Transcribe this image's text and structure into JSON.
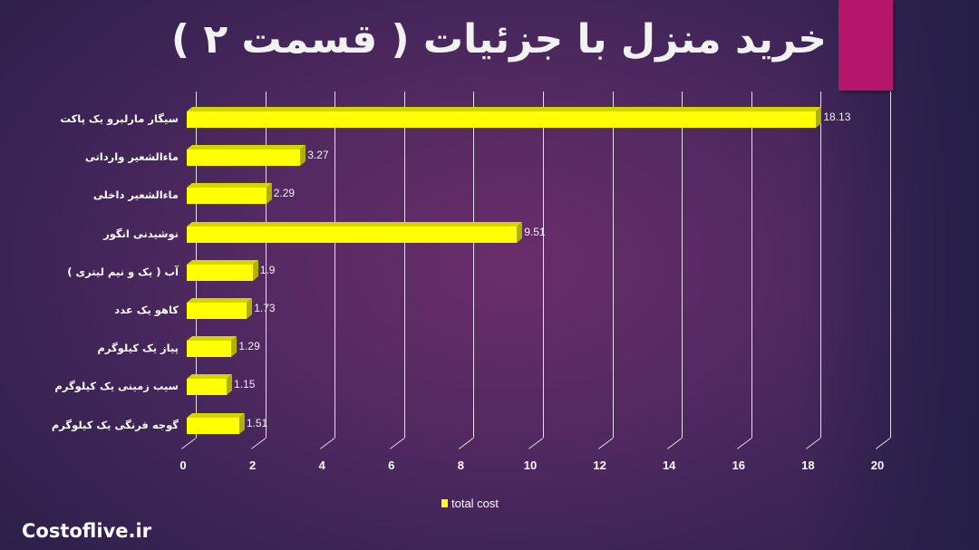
{
  "title": "خرید منزل با جزئیات ( قسمت ۲ )",
  "brand": "Costoflive.ir",
  "colors": {
    "accent": "#b5156a",
    "bar": "#ffff00",
    "background": "#552a62"
  },
  "legend": {
    "label": "total cost"
  },
  "chart_data": {
    "type": "bar",
    "orientation": "horizontal",
    "style": "3d",
    "title": "خرید منزل با جزئیات ( قسمت ۲ )",
    "xlabel": "",
    "ylabel": "",
    "xlim": [
      0,
      20
    ],
    "x_ticks": [
      "0",
      "2",
      "4",
      "6",
      "8",
      "10",
      "12",
      "14",
      "16",
      "18",
      "20"
    ],
    "grid": true,
    "legend_position": "bottom",
    "categories": [
      "سیگار مارلبرو یک پاکت",
      "ماءالشعیر وارداتی",
      "ماءالشعیر داخلی",
      "نوشیدنی انگور",
      "آب ( یک و نیم لیتری )",
      "کاهو  یک عدد",
      "پیاز یک کیلوگرم",
      "سیب زمینی یک کیلوگرم",
      "گوجه فرنگی یک کیلوگرم"
    ],
    "series": [
      {
        "name": "total cost",
        "values": [
          18.13,
          3.27,
          2.29,
          9.51,
          1.9,
          1.73,
          1.29,
          1.15,
          1.51
        ]
      }
    ],
    "value_labels": [
      "18.13",
      "3.27",
      "2.29",
      "9.51",
      "1.9",
      "1.73",
      "1.29",
      "1.15",
      "1.51"
    ]
  }
}
